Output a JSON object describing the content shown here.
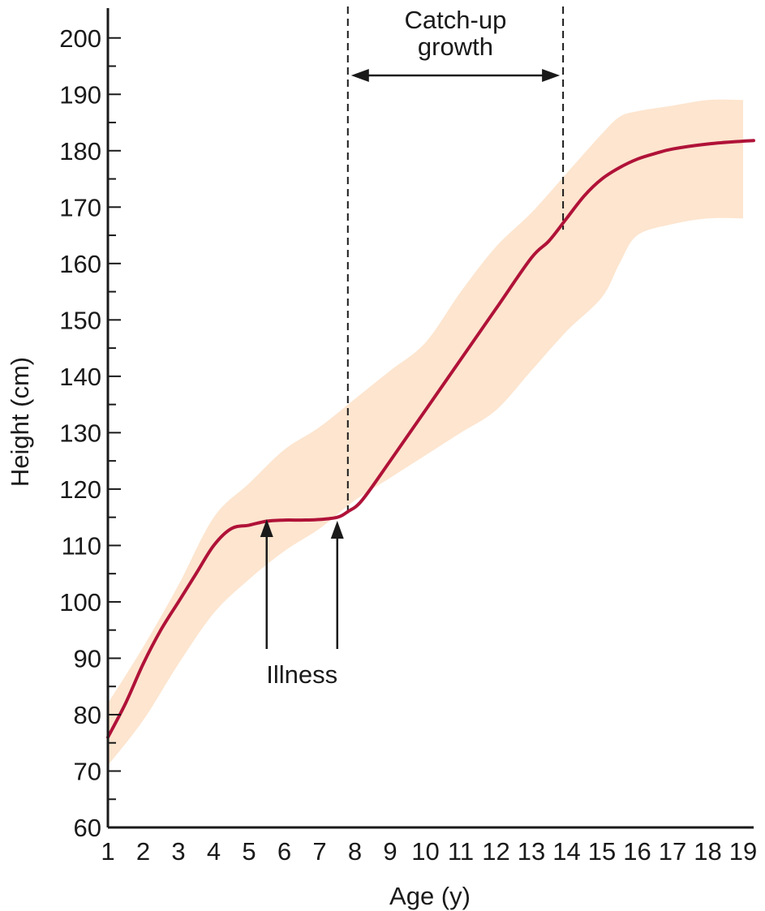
{
  "chart_data": {
    "type": "line",
    "title": "",
    "xlabel": "Age (y)",
    "ylabel": "Height (cm)",
    "xlim": [
      1,
      19.3
    ],
    "ylim": [
      60,
      205
    ],
    "x_ticks": [
      1,
      2,
      3,
      4,
      5,
      6,
      7,
      8,
      9,
      10,
      11,
      12,
      13,
      14,
      15,
      16,
      17,
      18,
      19
    ],
    "y_ticks": [
      60,
      70,
      80,
      90,
      100,
      110,
      120,
      130,
      140,
      150,
      160,
      170,
      180,
      190,
      200
    ],
    "grid": false,
    "colors": {
      "line": "#b01238",
      "band": "#fde5cf",
      "axis": "#1a1a1a"
    },
    "series": [
      {
        "x": [
          1,
          1.5,
          2,
          2.5,
          3,
          3.5,
          4,
          4.5,
          5,
          5.5,
          6,
          6.5,
          7,
          7.5,
          7.8,
          8.2,
          9,
          10,
          11,
          12,
          13,
          13.5,
          14,
          14.5,
          15,
          15.5,
          16,
          16.5,
          17,
          18,
          19,
          19.3
        ],
        "y": [
          76,
          82,
          89,
          95,
          100,
          105,
          110,
          113,
          113.6,
          114.3,
          114.5,
          114.5,
          114.6,
          115,
          116,
          118,
          125,
          134,
          143,
          152,
          161,
          164,
          168,
          172,
          175,
          177,
          178.5,
          179.5,
          180.3,
          181.2,
          181.7,
          181.8
        ]
      }
    ],
    "normal_range": {
      "x": [
        1,
        2,
        3,
        4,
        5,
        6,
        7,
        8,
        9,
        10,
        11,
        12,
        13,
        14,
        15,
        15.5,
        16,
        17,
        18,
        19
      ],
      "upper": [
        82,
        92,
        103,
        115,
        121,
        127,
        131,
        136,
        141,
        146,
        155,
        163,
        169,
        176,
        183,
        186,
        187,
        188,
        189,
        189
      ],
      "lower": [
        71,
        79,
        89,
        98,
        104,
        109,
        113,
        118,
        122,
        126,
        130,
        134,
        141,
        148,
        154,
        160,
        165,
        167,
        168,
        168
      ]
    },
    "annotations": {
      "catch_up": {
        "label": "Catch-up\ngrowth",
        "x_start": 7.8,
        "x_end": 13.9
      },
      "illness": {
        "label": "Illness",
        "x": [
          5.5,
          7.5
        ]
      }
    }
  }
}
